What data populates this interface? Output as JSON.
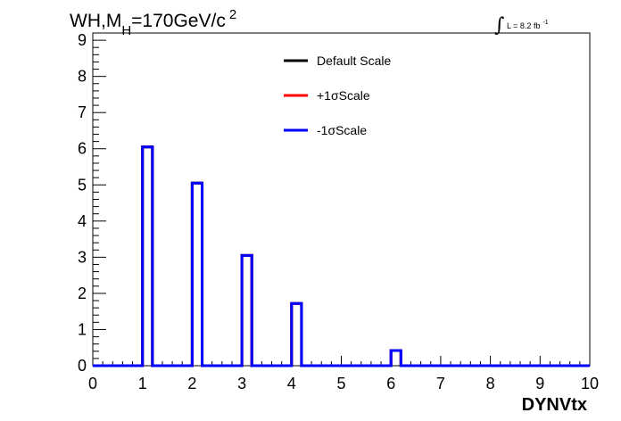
{
  "chart_data": {
    "type": "histogram",
    "title": {
      "main": "WH,M",
      "subscript": "H",
      "value": "=170GeV/c",
      "superscript": "2"
    },
    "lumi": {
      "integral": "∫",
      "text": "L = 8.2 fb",
      "exponent": "-1"
    },
    "xlabel": "DYNVtx",
    "ylabel": "",
    "xlim": [
      0,
      10
    ],
    "ylim": [
      0,
      9.2
    ],
    "xticks": [
      "0",
      "1",
      "2",
      "3",
      "4",
      "5",
      "6",
      "7",
      "8",
      "9",
      "10"
    ],
    "yticks": [
      "0",
      "1",
      "2",
      "3",
      "4",
      "5",
      "6",
      "7",
      "8",
      "9"
    ],
    "grid": false,
    "legend_position": "top-center",
    "bin_width": 0.2,
    "series": [
      {
        "name": "Default Scale",
        "color": "#000000",
        "bins": [
          {
            "x": 1.0,
            "value": 6.05
          },
          {
            "x": 2.0,
            "value": 5.05
          },
          {
            "x": 3.0,
            "value": 3.05
          },
          {
            "x": 4.0,
            "value": 1.72
          },
          {
            "x": 6.0,
            "value": 0.42
          }
        ]
      },
      {
        "name": "+1σScale",
        "color": "#ff0000",
        "bins": [
          {
            "x": 1.0,
            "value": 6.05
          },
          {
            "x": 2.0,
            "value": 5.05
          },
          {
            "x": 3.0,
            "value": 3.05
          },
          {
            "x": 4.0,
            "value": 1.72
          },
          {
            "x": 6.0,
            "value": 0.42
          }
        ]
      },
      {
        "name": "-1σScale",
        "color": "#0000ff",
        "bins": [
          {
            "x": 1.0,
            "value": 6.05
          },
          {
            "x": 2.0,
            "value": 5.05
          },
          {
            "x": 3.0,
            "value": 3.05
          },
          {
            "x": 4.0,
            "value": 1.72
          },
          {
            "x": 6.0,
            "value": 0.42
          }
        ]
      }
    ]
  }
}
